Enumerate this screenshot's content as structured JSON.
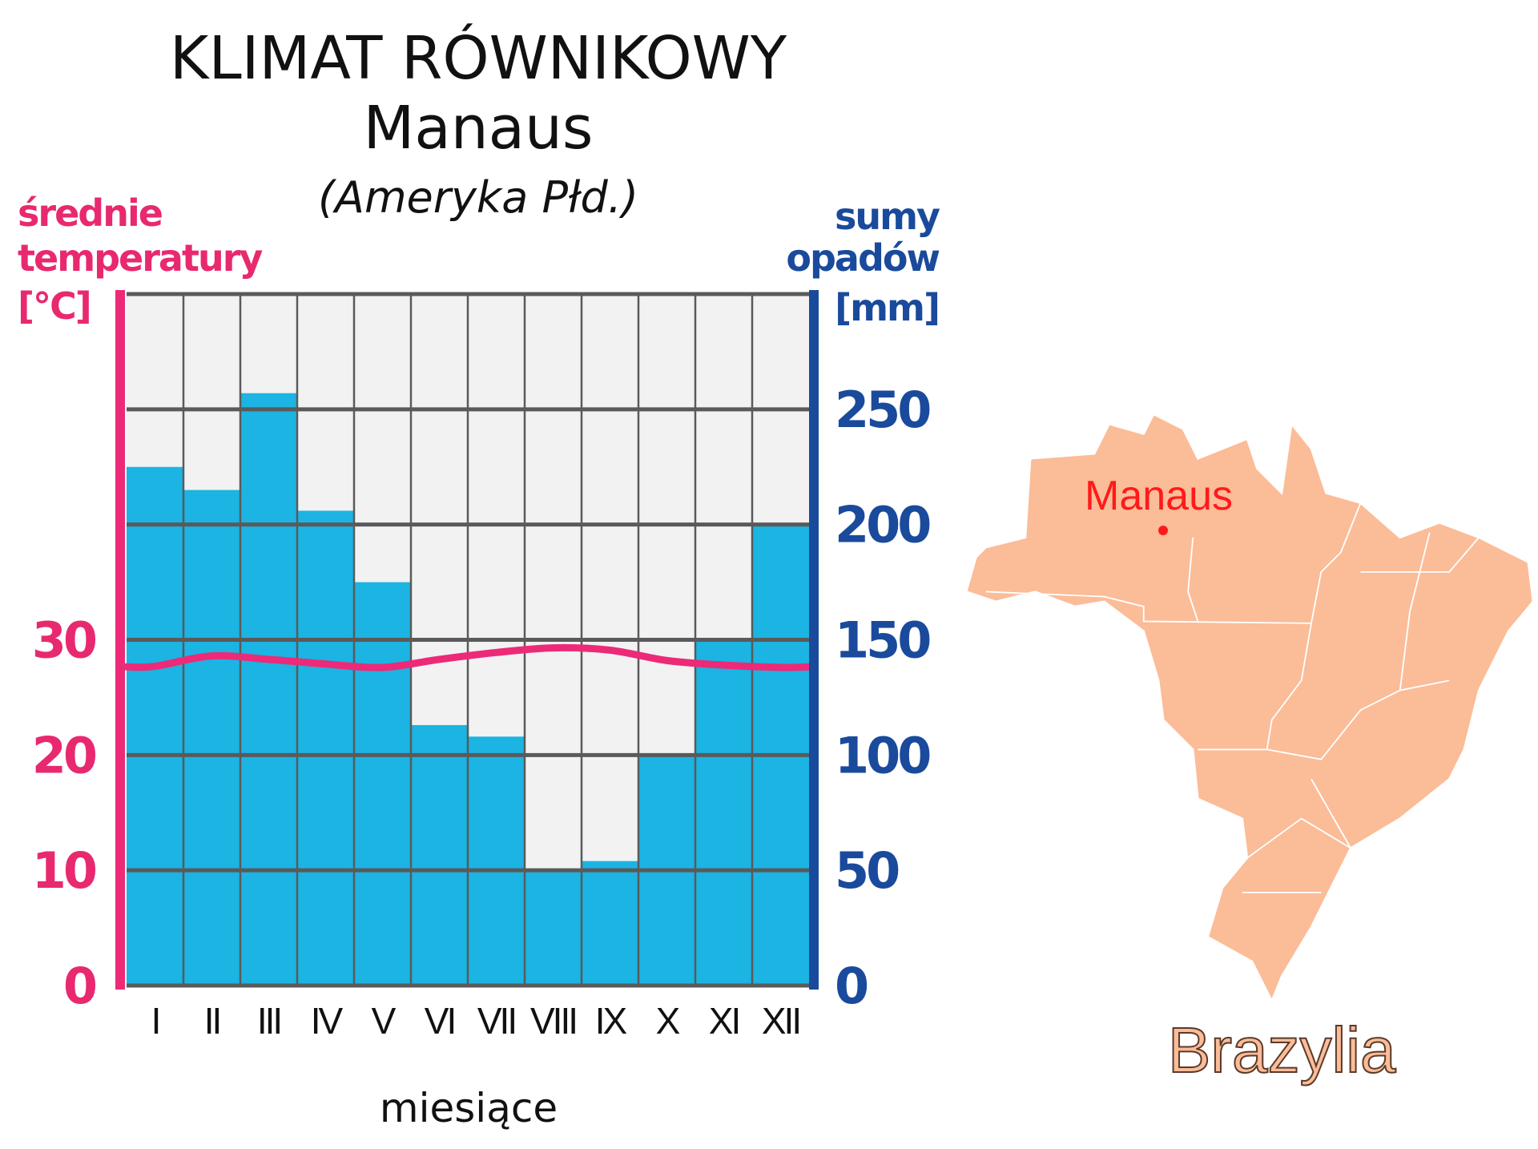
{
  "chart_data": {
    "type": "bar",
    "title": "KLIMAT RÓWNIKOWY",
    "subtitle": "Manaus",
    "region": "(Ameryka Płd.)",
    "xlabel": "miesiące",
    "ylabel_left": [
      "średnie",
      "temperatury",
      "[°C]"
    ],
    "ylabel_right": [
      "sumy",
      "opadów",
      "[mm]"
    ],
    "categories": [
      "I",
      "II",
      "III",
      "IV",
      "V",
      "VI",
      "VII",
      "VIII",
      "IX",
      "X",
      "XI",
      "XII"
    ],
    "series": [
      {
        "type": "bar",
        "axis": "right",
        "values": [
          225,
          215,
          257,
          206,
          175,
          113,
          108,
          50,
          54,
          100,
          150,
          200
        ]
      },
      {
        "type": "line",
        "axis": "left",
        "values": [
          27.7,
          28.6,
          28.3,
          27.9,
          27.6,
          28.3,
          28.9,
          29.3,
          29.1,
          28.2,
          27.8,
          27.6
        ]
      }
    ],
    "ylim_right": [
      0,
      300
    ],
    "ylim_left": [
      0,
      60
    ],
    "yticks_right": [
      "0",
      "50",
      "100",
      "150",
      "200",
      "250"
    ],
    "yticks_left": [
      "0",
      "10",
      "20",
      "30"
    ],
    "grid": true,
    "colors": {
      "bar": "#1bb4e3",
      "line": "#ec2a78",
      "temp_axis": "#ec2a78",
      "precip_axis": "#1a4a9c",
      "plot_bg": "#f2f2f2",
      "grid": "#5a5a5a"
    }
  },
  "map": {
    "city": "Manaus",
    "country": "Brazylia",
    "colors": {
      "land": "#fbbc98",
      "city": "#ff1a1a"
    }
  }
}
